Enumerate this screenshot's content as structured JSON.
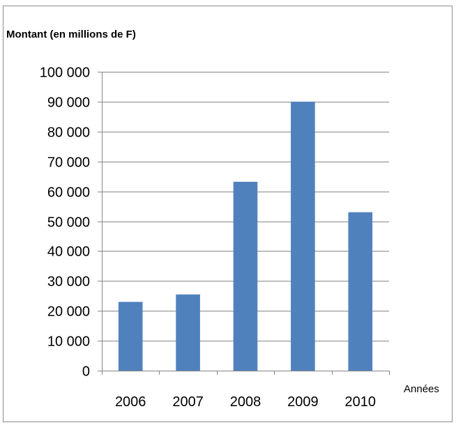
{
  "chart_data": {
    "type": "bar",
    "title": "",
    "ylabel": "Montant (en millions de F)",
    "xlabel": "Années",
    "categories": [
      "2006",
      "2007",
      "2008",
      "2009",
      "2010"
    ],
    "values": [
      23000,
      25500,
      63200,
      90000,
      53000
    ],
    "ylim": [
      0,
      100000
    ],
    "yticks": [
      0,
      10000,
      20000,
      30000,
      40000,
      50000,
      60000,
      70000,
      80000,
      90000,
      100000
    ],
    "ytick_labels": [
      "0",
      "10 000",
      "20 000",
      "30 000",
      "40 000",
      "50 000",
      "60 000",
      "70 000",
      "80 000",
      "90 000",
      "100 000"
    ],
    "grid": true,
    "legend": "none",
    "bar_color": "#4f81bd",
    "grid_color": "#868686"
  }
}
